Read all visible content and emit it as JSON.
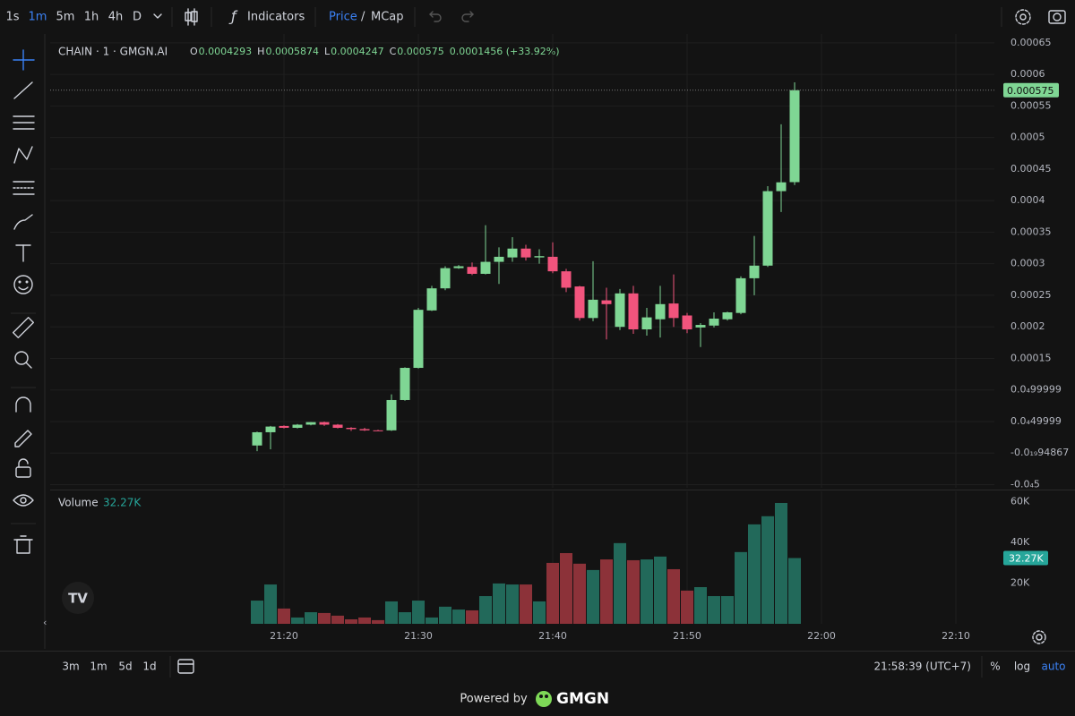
{
  "toolbar": {
    "intervals": [
      "1s",
      "1m",
      "5m",
      "1h",
      "4h",
      "D"
    ],
    "indicators": "Indicators",
    "price": "Price",
    "separator": "/",
    "mcap": "MCap"
  },
  "chart_data": [
    {
      "type": "candlestick",
      "title": "CHAIN · 1 · GMGN.AI",
      "legend": [
        {
          "label": "O",
          "value": "0.0004293"
        },
        {
          "label": "H",
          "value": "0.0005874"
        },
        {
          "label": "L",
          "value": "0.0004247"
        },
        {
          "label": "C",
          "value": "0.000575"
        }
      ],
      "change": "0.0001456 (+33.92%)",
      "x": [
        "21:18",
        "21:19",
        "21:20",
        "21:21",
        "21:22",
        "21:23",
        "21:24",
        "21:25",
        "21:26",
        "21:27",
        "21:28",
        "21:29",
        "21:30",
        "21:31",
        "21:32",
        "21:33",
        "21:34",
        "21:35",
        "21:36",
        "21:37",
        "21:38",
        "21:39",
        "21:40",
        "21:41",
        "21:42",
        "21:43",
        "21:44",
        "21:45",
        "21:46",
        "21:47",
        "21:48",
        "21:49",
        "21:50",
        "21:51",
        "21:52",
        "21:53",
        "21:54",
        "21:55",
        "21:56",
        "21:57",
        "21:58"
      ],
      "open": [
        1.2e-05,
        3.3e-05,
        4.3e-05,
        4e-05,
        4.5e-05,
        4.9e-05,
        4.5e-05,
        4e-05,
        3.8e-05,
        3.6e-05,
        3.6e-05,
        8.4e-05,
        0.000135,
        0.000226,
        0.000261,
        0.000293,
        0.000295,
        0.000284,
        0.000303,
        0.00031,
        0.000324,
        0.00031,
        0.000311,
        0.000288,
        0.000264,
        0.000214,
        0.000242,
        0.0002,
        0.000253,
        0.000196,
        0.000212,
        0.000237,
        0.000218,
        0.000199,
        0.000202,
        0.000212,
        0.000222,
        0.000277,
        0.000297,
        0.000415,
        0.0004293
      ],
      "high": [
        3.4e-05,
        4.3e-05,
        4.4e-05,
        4.6e-05,
        4.9e-05,
        5e-05,
        4.6e-05,
        4.1e-05,
        4e-05,
        3.7e-05,
        9.3e-05,
        0.000136,
        0.00023,
        0.000265,
        0.000296,
        0.000298,
        0.000302,
        0.000361,
        0.000326,
        0.000342,
        0.00033,
        0.000323,
        0.000334,
        0.000292,
        0.000265,
        0.000304,
        0.000262,
        0.00026,
        0.000265,
        0.00023,
        0.000265,
        0.000283,
        0.000222,
        0.000206,
        0.000223,
        0.000224,
        0.00028,
        0.000344,
        0.000423,
        0.000521,
        0.0005874
      ],
      "low": [
        3e-06,
        6e-06,
        3.9e-05,
        3.9e-05,
        4.4e-05,
        4.3e-05,
        3.9e-05,
        3.5e-05,
        3.5e-05,
        3.5e-05,
        3.5e-05,
        8.3e-05,
        0.000134,
        0.000225,
        0.000258,
        0.000292,
        0.000282,
        0.000283,
        0.000268,
        0.000303,
        0.000305,
        0.0003,
        0.000285,
        0.000255,
        0.00021,
        0.000209,
        0.00018,
        0.000195,
        0.000189,
        0.000186,
        0.000183,
        0.0002,
        0.00019,
        0.000168,
        0.000199,
        0.00021,
        0.00022,
        0.00025,
        0.000295,
        0.000382,
        0.0004247
      ],
      "close": [
        3.3e-05,
        4.2e-05,
        4e-05,
        4.5e-05,
        4.9e-05,
        4.5e-05,
        4e-05,
        3.8e-05,
        3.6e-05,
        3.5e-05,
        8.4e-05,
        0.000135,
        0.000227,
        0.000261,
        0.000293,
        0.000296,
        0.000284,
        0.000303,
        0.000311,
        0.000324,
        0.00031,
        0.000312,
        0.000288,
        0.000262,
        0.000214,
        0.000243,
        0.000236,
        0.000253,
        0.000196,
        0.000215,
        0.000236,
        0.000214,
        0.000196,
        0.000203,
        0.000213,
        0.000223,
        0.000277,
        0.000297,
        0.000415,
        0.000429,
        0.000575
      ],
      "last_value_label": "0.000575",
      "up_color": "#7fd694",
      "down_color": "#f2547d",
      "xlim": [
        "21:02:36",
        "22:12:52"
      ],
      "xticks": [
        "21:20",
        "21:30",
        "21:40",
        "21:50",
        "22:00",
        "22:10"
      ],
      "ylim": [
        -5.5e-05,
        0.000664
      ],
      "yticks": [
        0.00065,
        0.0006,
        0.00055,
        0.0005,
        0.00045,
        0.0004,
        0.00035,
        0.0003,
        0.00025,
        0.0002,
        0.00015,
        {
          "value": 0.0001,
          "label": "0.0₄99999"
        },
        {
          "value": 5e-05,
          "label": "0.0₄49999"
        },
        {
          "value": 0,
          "label": "-0.0₁₉94867"
        },
        {
          "value": -5e-05,
          "label": "-0.0₄5"
        }
      ],
      "grid": true
    },
    {
      "type": "bar",
      "title": "Volume",
      "x": [
        "21:18",
        "21:19",
        "21:20",
        "21:21",
        "21:22",
        "21:23",
        "21:24",
        "21:25",
        "21:26",
        "21:27",
        "21:28",
        "21:29",
        "21:30",
        "21:31",
        "21:32",
        "21:33",
        "21:34",
        "21:35",
        "21:36",
        "21:37",
        "21:38",
        "21:39",
        "21:40",
        "21:41",
        "21:42",
        "21:43",
        "21:44",
        "21:45",
        "21:46",
        "21:47",
        "21:48",
        "21:49",
        "21:50",
        "21:51",
        "21:52",
        "21:53",
        "21:54",
        "21:55",
        "21:56",
        "21:57",
        "21:58"
      ],
      "values": [
        11400,
        19300,
        7500,
        3100,
        5700,
        5300,
        4000,
        2200,
        3100,
        1800,
        11000,
        5700,
        11400,
        3100,
        8400,
        7000,
        6600,
        13600,
        19800,
        19300,
        19300,
        11000,
        29900,
        34700,
        29500,
        26400,
        31600,
        39600,
        31200,
        31600,
        33000,
        26800,
        16300,
        18000,
        13600,
        13600,
        35200,
        48800,
        52800,
        59300,
        32270
      ],
      "last_value_label": "32.27K",
      "up_color": "#22695a",
      "down_color": "#8c3239",
      "xlim": [
        "21:02:36",
        "22:12:52"
      ],
      "ylim": [
        0,
        65000
      ],
      "yticks": [
        {
          "value": 60000,
          "label": "60K"
        },
        {
          "value": 40000,
          "label": "40K"
        },
        {
          "value": 20000,
          "label": "20K"
        }
      ]
    }
  ],
  "bottom_bar": {
    "ranges": [
      "3m",
      "1m",
      "5d",
      "1d"
    ],
    "clock": "21:58:39 (UTC+7)",
    "percent": "%",
    "log": "log",
    "auto": "auto"
  },
  "footer": {
    "powered_by": "Powered by",
    "brand": "GMGN"
  }
}
